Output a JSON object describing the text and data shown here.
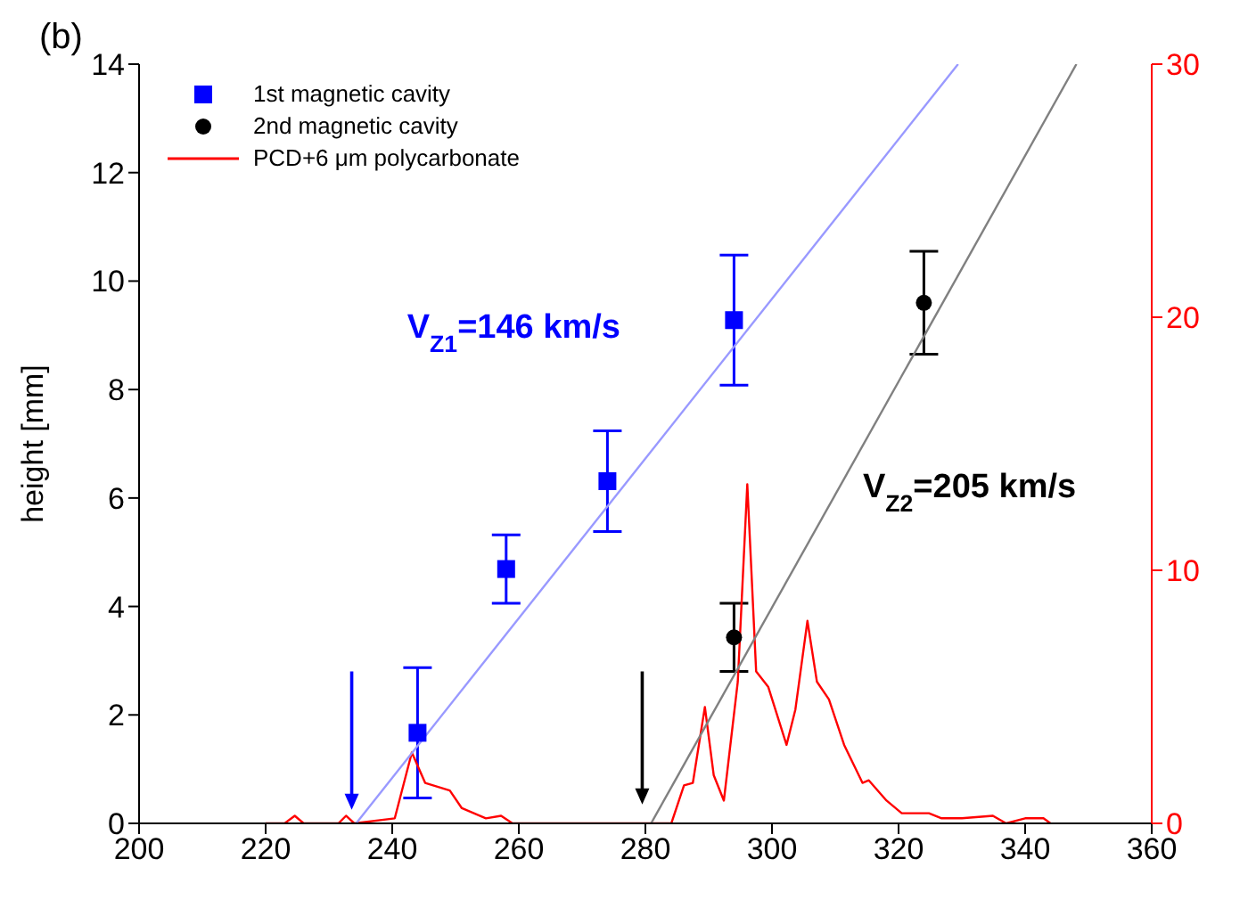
{
  "chart_data": {
    "type": "scatter",
    "title": "(b)",
    "ylabel": "height [mm]",
    "xlim": [
      200,
      360
    ],
    "xticks": [
      200,
      220,
      240,
      260,
      280,
      300,
      320,
      340,
      360
    ],
    "ylim": [
      0,
      14
    ],
    "yticks": [
      0,
      2,
      4,
      6,
      8,
      10,
      12,
      14
    ],
    "y2lim": [
      0,
      30
    ],
    "y2ticks": [
      0,
      10,
      20,
      30
    ],
    "legend": "top left",
    "series": [
      {
        "name": "1st magnetic cavity",
        "color": "#0000ff",
        "marker": "square",
        "x": [
          244,
          258,
          274,
          294
        ],
        "values": [
          1.67,
          4.69,
          6.31,
          9.28
        ],
        "errors": [
          1.2,
          0.63,
          0.93,
          1.2
        ]
      },
      {
        "name": "2nd magnetic cavity",
        "color": "#000000",
        "marker": "circle",
        "x": [
          294,
          324
        ],
        "values": [
          3.43,
          9.6
        ],
        "errors": [
          0.63,
          0.95
        ]
      },
      {
        "name": "PCD+6 μm polycarbonate",
        "type": "line",
        "color": "#ff0000",
        "axis": "y2",
        "marker": "none",
        "x": [
          220,
          223,
          224.6,
          226,
          231.5,
          232.7,
          234,
          240.4,
          243.1,
          245.2,
          249.1,
          251,
          254.8,
          257.2,
          259,
          283,
          284.1,
          286.1,
          287.5,
          289.4,
          290.8,
          292.4,
          294.6,
          296.1,
          297.5,
          299.4,
          302.3,
          303.7,
          305.6,
          307.1,
          309,
          311.4,
          314.3,
          315.3,
          318.1,
          320.5,
          324.8,
          326.8,
          330,
          334.9,
          337,
          340,
          342.9,
          344
        ],
        "values": [
          0,
          0,
          0.3,
          0,
          0,
          0.3,
          0,
          0.2,
          2.8,
          1.6,
          1.3,
          0.6,
          0.2,
          0.3,
          0,
          0,
          0,
          1.5,
          1.6,
          4.6,
          1.9,
          0.9,
          5.6,
          13.4,
          6,
          5.4,
          3.1,
          4.5,
          8,
          5.6,
          4.9,
          3.1,
          1.6,
          1.7,
          0.9,
          0.4,
          0.4,
          0.2,
          0.2,
          0.3,
          0,
          0.2,
          0.2,
          0
        ]
      },
      {
        "type": "line",
        "color": "#9999ff",
        "marker": "none",
        "x": [
          234.3,
          329.4
        ],
        "values": [
          0,
          14
        ]
      },
      {
        "type": "line",
        "color": "#808080",
        "marker": "none",
        "x": [
          280.9,
          348.1
        ],
        "values": [
          0,
          14
        ]
      }
    ],
    "annotations": [
      "V$_{Z1}$=146 km/s",
      "V$_{Z2}$=205 km/s"
    ]
  }
}
